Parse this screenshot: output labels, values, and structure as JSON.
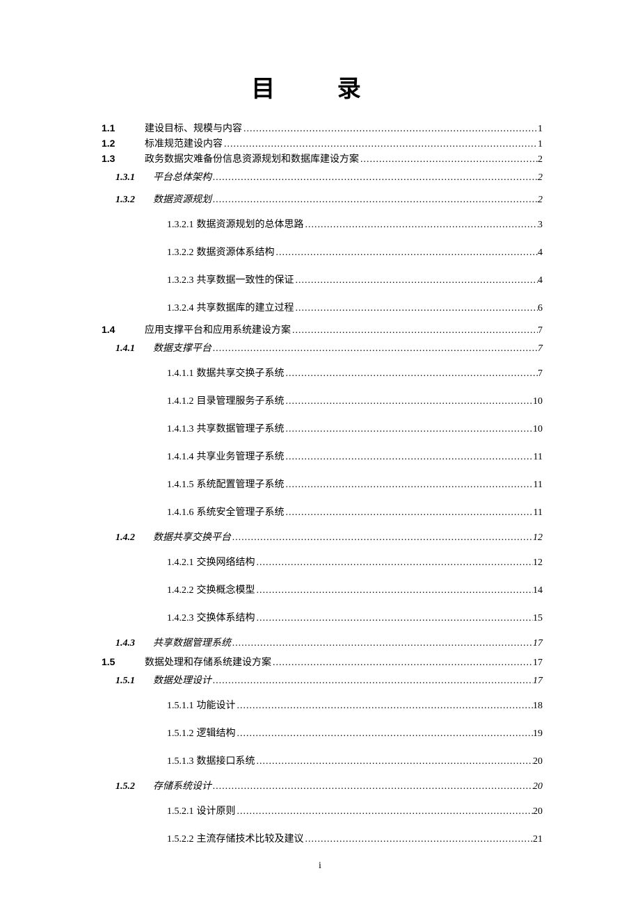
{
  "title": "目 录",
  "page_number": "i",
  "colors": {
    "background": "#ffffff",
    "text": "#000000"
  },
  "typography": {
    "title_fontsize": 34,
    "title_letter_spacing": 40,
    "body_fontsize": 14
  },
  "entries": [
    {
      "level": 1,
      "num": "1.1",
      "text": "建设目标、规模与内容",
      "page": "1"
    },
    {
      "level": 1,
      "num": "1.2",
      "text": "标准规范建设内容",
      "page": "1"
    },
    {
      "level": 1,
      "num": "1.3",
      "text": "政务数据灾难备份信息资源规划和数据库建设方案",
      "page": "2"
    },
    {
      "level": 2,
      "num": "1.3.1",
      "text": "平台总体架构",
      "page": "2"
    },
    {
      "level": 2,
      "num": "1.3.2",
      "text": "数据资源规划",
      "page": "2"
    },
    {
      "level": 3,
      "num": "1.3.2.1",
      "text": "数据资源规划的总体思路",
      "page": "3"
    },
    {
      "level": 3,
      "num": "1.3.2.2",
      "text": "数据资源体系结构",
      "page": "4"
    },
    {
      "level": 3,
      "num": "1.3.2.3",
      "text": "共享数据一致性的保证",
      "page": "4"
    },
    {
      "level": 3,
      "num": "1.3.2.4",
      "text": "共享数据库的建立过程",
      "page": "6"
    },
    {
      "level": 1,
      "num": "1.4",
      "text": "应用支撑平台和应用系统建设方案",
      "page": "7"
    },
    {
      "level": 2,
      "num": "1.4.1",
      "text": "数据支撑平台",
      "page": "7"
    },
    {
      "level": 3,
      "num": "1.4.1.1",
      "text": "数据共享交换子系统",
      "page": "7"
    },
    {
      "level": 3,
      "num": "1.4.1.2",
      "text": "目录管理服务子系统",
      "page": "10"
    },
    {
      "level": 3,
      "num": "1.4.1.3",
      "text": "共享数据管理子系统",
      "page": "10"
    },
    {
      "level": 3,
      "num": "1.4.1.4",
      "text": "共享业务管理子系统",
      "page": "11"
    },
    {
      "level": 3,
      "num": "1.4.1.5",
      "text": "系统配置管理子系统",
      "page": "11"
    },
    {
      "level": 3,
      "num": "1.4.1.6",
      "text": "系统安全管理子系统",
      "page": "11"
    },
    {
      "level": 2,
      "num": "1.4.2",
      "text": "数据共享交换平台",
      "page": "12"
    },
    {
      "level": 3,
      "num": "1.4.2.1",
      "text": "交换网络结构",
      "page": "12"
    },
    {
      "level": 3,
      "num": "1.4.2.2",
      "text": "交换概念模型",
      "page": "14"
    },
    {
      "level": 3,
      "num": "1.4.2.3",
      "text": "交换体系结构",
      "page": "15"
    },
    {
      "level": 2,
      "num": "1.4.3",
      "text": "共享数据管理系统",
      "page": "17"
    },
    {
      "level": 1,
      "num": "1.5",
      "text": "数据处理和存储系统建设方案",
      "page": "17"
    },
    {
      "level": 2,
      "num": "1.5.1",
      "text": "数据处理设计",
      "page": "17"
    },
    {
      "level": 3,
      "num": "1.5.1.1",
      "text": "功能设计",
      "page": "18"
    },
    {
      "level": 3,
      "num": "1.5.1.2",
      "text": "逻辑结构",
      "page": "19"
    },
    {
      "level": 3,
      "num": "1.5.1.3",
      "text": "数据接口系统",
      "page": "20"
    },
    {
      "level": 2,
      "num": "1.5.2",
      "text": "存储系统设计",
      "page": "20"
    },
    {
      "level": 3,
      "num": "1.5.2.1",
      "text": "设计原则",
      "page": "20"
    },
    {
      "level": 3,
      "num": "1.5.2.2",
      "text": "主流存储技术比较及建议",
      "page": "21"
    }
  ]
}
